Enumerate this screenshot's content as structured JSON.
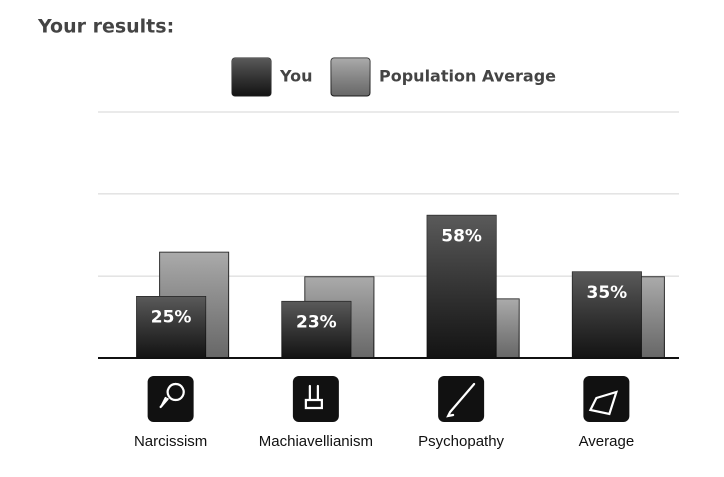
{
  "chart_data": {
    "type": "bar",
    "title": "Your results:",
    "categories": [
      "Narcissism",
      "Machiavellianism",
      "Psychopathy",
      "Average"
    ],
    "series": [
      {
        "name": "You",
        "color": "#1a1a1a",
        "values": [
          25,
          23,
          58,
          35
        ],
        "value_labels": [
          "25%",
          "23%",
          "58%",
          "35%"
        ]
      },
      {
        "name": "Population Average",
        "color": "#8a8a8a",
        "values": [
          43,
          33,
          24,
          33
        ]
      }
    ],
    "ylim": [
      0,
      100
    ],
    "yticks": [
      33.3,
      66.7,
      100
    ],
    "grid": true
  }
}
